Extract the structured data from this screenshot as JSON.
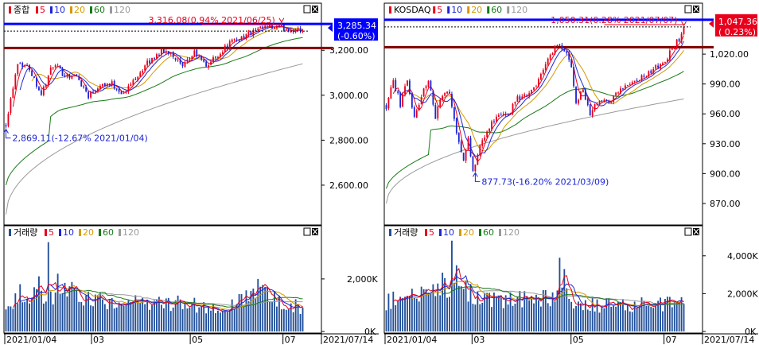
{
  "colors": {
    "up": "#e8001c",
    "down": "#1c26d6",
    "ma5": "#e8001c",
    "ma10": "#1c26d6",
    "ma20": "#d49a00",
    "ma60": "#177a17",
    "ma120": "#9a9a9a",
    "priceline": "#0000ff",
    "resist": "#800000",
    "volbar": "#1f4e9a"
  },
  "ma_legend": [
    {
      "label": "5",
      "color": "#e8001c"
    },
    {
      "label": "10",
      "color": "#1c26d6"
    },
    {
      "label": "20",
      "color": "#d49a00"
    },
    {
      "label": "60",
      "color": "#177a17"
    },
    {
      "label": "120",
      "color": "#9a9a9a"
    }
  ],
  "x_axis": {
    "labels": [
      "2021/01/04",
      "03",
      "05",
      "07"
    ],
    "end_label": "2021/07/14"
  },
  "chart_data": [
    {
      "type": "candlestick",
      "name": "종합",
      "ylim": [
        2430,
        3360
      ],
      "y_ticks": [
        {
          "v": 3200,
          "label": "3,200.00"
        },
        {
          "v": 3000,
          "label": "3,000.00"
        },
        {
          "v": 2800,
          "label": "2,800.00"
        },
        {
          "v": 2600,
          "label": "2,600.00"
        }
      ],
      "start_value": 2869,
      "end_value": 3285.34,
      "waypoints": [
        [
          0,
          2875
        ],
        [
          5,
          3150
        ],
        [
          10,
          3120
        ],
        [
          15,
          3005
        ],
        [
          20,
          3135
        ],
        [
          25,
          3090
        ],
        [
          30,
          3085
        ],
        [
          35,
          3000
        ],
        [
          40,
          3050
        ],
        [
          45,
          3050
        ],
        [
          50,
          3005
        ],
        [
          55,
          3080
        ],
        [
          60,
          3140
        ],
        [
          65,
          3190
        ],
        [
          70,
          3195
        ],
        [
          75,
          3120
        ],
        [
          80,
          3190
        ],
        [
          85,
          3130
        ],
        [
          90,
          3180
        ],
        [
          95,
          3230
        ],
        [
          100,
          3260
        ],
        [
          105,
          3280
        ],
        [
          110,
          3300
        ],
        [
          115,
          3300
        ],
        [
          120,
          3295
        ],
        [
          126,
          3285
        ]
      ],
      "current": {
        "value": "3,285.34",
        "change": "(-0.60%)"
      },
      "high_annotation": "3,316.08(0.94% 2021/06/25)",
      "low_annotation": "2,869.11(-12.67% 2021/01/04)",
      "resistance": 3210,
      "ma_anchors": {
        "ma20": [
          2660,
          3080
        ],
        "ma60": [
          2600,
          3230
        ],
        "ma120": [
          2470,
          3140
        ]
      },
      "volume": {
        "title": "거래량",
        "ylim": [
          0,
          3600
        ],
        "y_ticks": [
          {
            "v": 2000,
            "label": "2,000K"
          },
          {
            "v": 0,
            "label": "0K"
          }
        ],
        "waypoints": [
          [
            0,
            1200
          ],
          [
            10,
            1300
          ],
          [
            20,
            1450
          ],
          [
            25,
            1700
          ],
          [
            30,
            1300
          ],
          [
            50,
            1050
          ],
          [
            70,
            1100
          ],
          [
            80,
            1050
          ],
          [
            90,
            750
          ],
          [
            100,
            1150
          ],
          [
            106,
            1500
          ],
          [
            115,
            1150
          ],
          [
            126,
            900
          ]
        ],
        "spikes": [
          [
            18,
            3400
          ],
          [
            22,
            2200
          ],
          [
            14,
            2100
          ],
          [
            107,
            2000
          ],
          [
            6,
            1800
          ]
        ]
      }
    },
    {
      "type": "candlestick",
      "name": "KOSDAQ",
      "ylim": [
        850,
        1060
      ],
      "y_ticks": [
        {
          "v": 1020,
          "label": "1,020.00"
        },
        {
          "v": 990,
          "label": "990.00"
        },
        {
          "v": 960,
          "label": "960.00"
        },
        {
          "v": 930,
          "label": "930.00"
        },
        {
          "v": 900,
          "label": "900.00"
        },
        {
          "v": 870,
          "label": "870.00"
        }
      ],
      "start_value": 968,
      "end_value": 1047.36,
      "waypoints": [
        [
          0,
          968
        ],
        [
          3,
          993
        ],
        [
          6,
          970
        ],
        [
          9,
          993
        ],
        [
          12,
          955
        ],
        [
          15,
          978
        ],
        [
          18,
          995
        ],
        [
          21,
          958
        ],
        [
          24,
          978
        ],
        [
          27,
          980
        ],
        [
          30,
          942
        ],
        [
          33,
          912
        ],
        [
          35,
          935
        ],
        [
          37,
          900
        ],
        [
          40,
          928
        ],
        [
          44,
          948
        ],
        [
          48,
          958
        ],
        [
          52,
          960
        ],
        [
          56,
          975
        ],
        [
          60,
          980
        ],
        [
          64,
          990
        ],
        [
          68,
          1010
        ],
        [
          72,
          1027
        ],
        [
          76,
          1025
        ],
        [
          79,
          1010
        ],
        [
          81,
          972
        ],
        [
          84,
          985
        ],
        [
          87,
          960
        ],
        [
          90,
          970
        ],
        [
          93,
          975
        ],
        [
          96,
          972
        ],
        [
          100,
          988
        ],
        [
          104,
          990
        ],
        [
          108,
          995
        ],
        [
          112,
          1000
        ],
        [
          116,
          1008
        ],
        [
          119,
          1012
        ],
        [
          122,
          1025
        ],
        [
          125,
          1035
        ],
        [
          127,
          1047
        ]
      ],
      "current": {
        "value": "1,047.36",
        "change": "( 0.23%)"
      },
      "high_annotation": "1,050.31(0.28% 2021/07/07)",
      "low_annotation": "877.73(-16.20% 2021/03/09)",
      "resistance": 1027,
      "ma_anchors": {
        "ma20": [
          935,
          1020
        ],
        "ma60": [
          885,
          995
        ],
        "ma120": [
          870,
          975
        ]
      },
      "volume": {
        "title": "거래량",
        "ylim": [
          0,
          5000
        ],
        "y_ticks": [
          {
            "v": 4000,
            "label": "4,000K"
          },
          {
            "v": 2000,
            "label": "2,000K"
          },
          {
            "v": 0,
            "label": "0K"
          }
        ],
        "waypoints": [
          [
            0,
            1600
          ],
          [
            10,
            1800
          ],
          [
            20,
            2000
          ],
          [
            25,
            2600
          ],
          [
            30,
            2200
          ],
          [
            40,
            1750
          ],
          [
            50,
            1600
          ],
          [
            60,
            1700
          ],
          [
            70,
            1800
          ],
          [
            75,
            2300
          ],
          [
            78,
            1600
          ],
          [
            90,
            1400
          ],
          [
            100,
            1400
          ],
          [
            110,
            1500
          ],
          [
            127,
            1450
          ]
        ],
        "spikes": [
          [
            28,
            4800
          ],
          [
            30,
            3500
          ],
          [
            74,
            3900
          ],
          [
            76,
            3300
          ],
          [
            34,
            2700
          ]
        ]
      }
    }
  ]
}
